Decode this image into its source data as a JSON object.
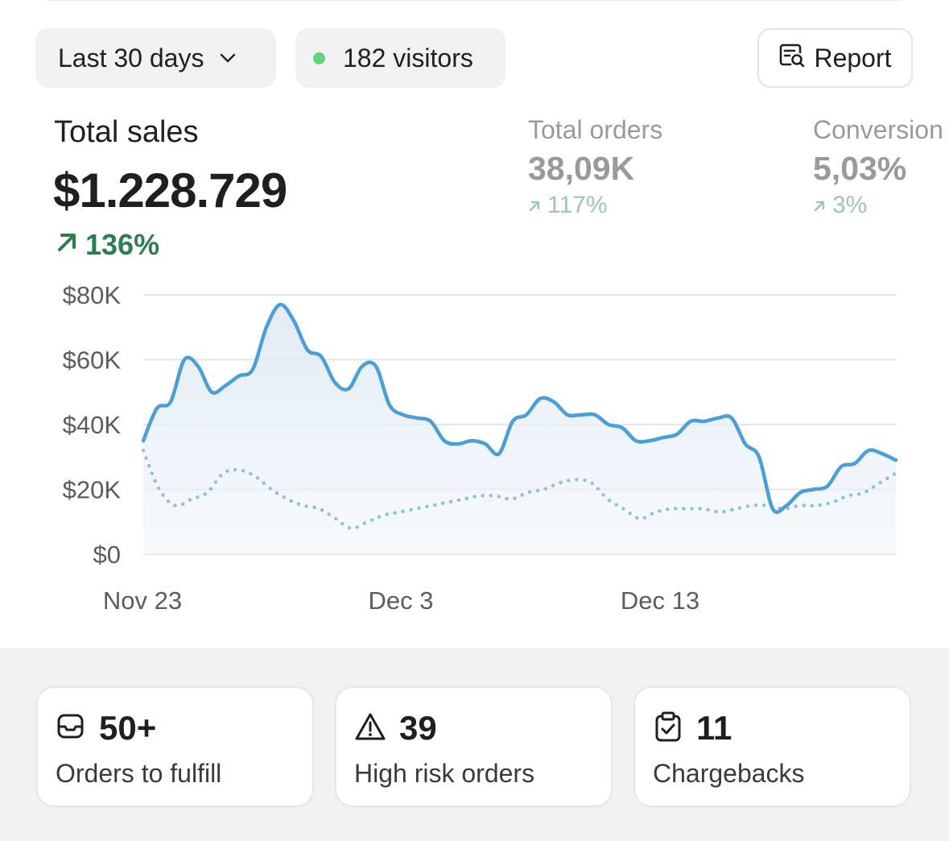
{
  "filters": {
    "date_range": "Last 30 days",
    "visitors": "182 visitors",
    "visitors_dot_color": "#5fd67a"
  },
  "report_button": {
    "label": "Report",
    "icon": "report-search-icon"
  },
  "total_sales": {
    "label": "Total sales",
    "value": "$1.228.729",
    "change": "136%",
    "change_color": "#2e7d4f"
  },
  "total_orders": {
    "label": "Total orders",
    "value": "38,09K",
    "change": "117%",
    "change_color": "#9cc7ad"
  },
  "conversion": {
    "label": "Conversion",
    "value": "5,03%",
    "change": "3%",
    "change_color": "#9cc7ad"
  },
  "chart_data": {
    "type": "line",
    "x_tick_labels": [
      "Nov 23",
      "Dec 3",
      "Dec 13"
    ],
    "y_tick_labels": [
      "$80K",
      "$60K",
      "$40K",
      "$20K",
      "$0"
    ],
    "ylim": [
      0,
      80000
    ],
    "grid": true,
    "series": [
      {
        "style": "solid",
        "color": "#4a9fd8",
        "values": [
          35000,
          45000,
          47000,
          60000,
          58000,
          50000,
          52000,
          55000,
          57000,
          70000,
          77000,
          72000,
          63000,
          61000,
          53000,
          51000,
          58000,
          58000,
          46000,
          43000,
          42000,
          41000,
          35000,
          34000,
          35000,
          34000,
          31000,
          41000,
          43000,
          48000,
          47000,
          43000,
          43000,
          43000,
          40000,
          39000,
          35000,
          35000,
          36000,
          37000,
          41000,
          41000,
          42000,
          42000,
          34000,
          30000,
          14000,
          15000,
          19000,
          20000,
          21000,
          27000,
          28000,
          32000,
          31000,
          29000
        ]
      },
      {
        "style": "dotted",
        "color": "#8fc3d6",
        "values": [
          32000,
          20000,
          15000,
          17000,
          19000,
          25000,
          26000,
          24000,
          20000,
          17000,
          15000,
          14000,
          11000,
          8000,
          10000,
          12000,
          13000,
          14000,
          15000,
          16000,
          17000,
          18000,
          18000,
          17000,
          19000,
          20000,
          22000,
          23000,
          22000,
          17000,
          14000,
          11000,
          13000,
          14000,
          14000,
          14000,
          13000,
          14000,
          15000,
          15000,
          14000,
          15000,
          15000,
          16000,
          18000,
          19000,
          22000,
          25000
        ]
      }
    ]
  },
  "cards": [
    {
      "icon": "inbox-icon",
      "value": "50+",
      "label": "Orders to fulfill"
    },
    {
      "icon": "warning-triangle-icon",
      "value": "39",
      "label": "High risk orders"
    },
    {
      "icon": "clipboard-check-icon",
      "value": "11",
      "label": "Chargebacks"
    }
  ]
}
